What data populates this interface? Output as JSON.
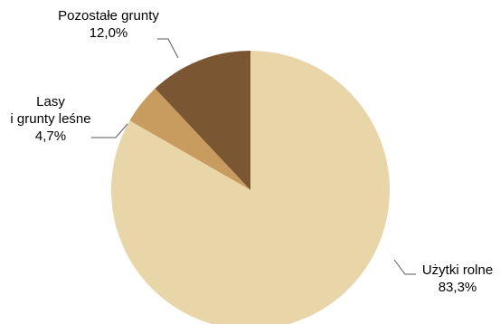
{
  "chart_data": {
    "type": "pie",
    "title": "",
    "start_angle_deg": 0,
    "direction": "clockwise",
    "slices": [
      {
        "label": "Użytki rolne",
        "value": 83.3,
        "value_label": "83,3%",
        "color": "#e8d5a8"
      },
      {
        "label_lines": [
          "Lasy",
          "i grunty leśne"
        ],
        "value": 4.7,
        "value_label": "4,7%",
        "color": "#c89b5e"
      },
      {
        "label": "Pozostałe grunty",
        "value": 12.0,
        "value_label": "12,0%",
        "color": "#7a5632"
      }
    ],
    "legend": "none"
  }
}
